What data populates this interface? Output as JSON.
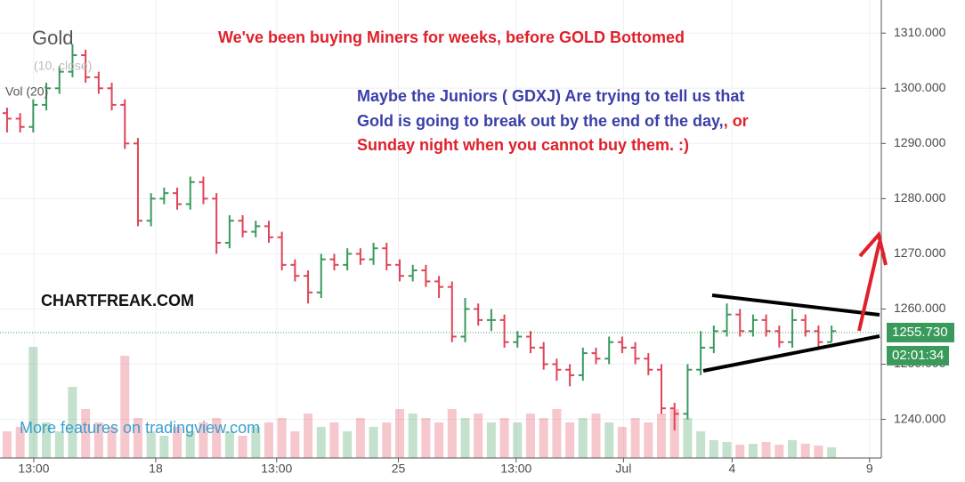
{
  "chart_data": {
    "type": "ohlc",
    "title": "Gold",
    "study_label": "(10, close)",
    "volume_label": "Vol (20)",
    "up_color": "#3a9a5c",
    "down_color": "#e04457",
    "grid": true,
    "ylim": [
      1233,
      1316
    ],
    "yticks": [
      {
        "value": 1240,
        "label": "1240.000"
      },
      {
        "value": 1250,
        "label": "1250.000"
      },
      {
        "value": 1260,
        "label": "1260.000"
      },
      {
        "value": 1270,
        "label": "1270.000"
      },
      {
        "value": 1280,
        "label": "1280.000"
      },
      {
        "value": 1290,
        "label": "1290.000"
      },
      {
        "value": 1300,
        "label": "1300.000"
      },
      {
        "value": 1310,
        "label": "1310.000"
      }
    ],
    "xlim": [
      -0.54,
      66.8
    ],
    "xticks": [
      {
        "value": 2.04,
        "label": "13:00"
      },
      {
        "value": 11.36,
        "label": "18"
      },
      {
        "value": 20.6,
        "label": "13:00"
      },
      {
        "value": 29.9,
        "label": "25"
      },
      {
        "value": 38.9,
        "label": "13:00"
      },
      {
        "value": 47.1,
        "label": "Jul"
      },
      {
        "value": 55.4,
        "label": "4"
      },
      {
        "value": 65.9,
        "label": "9"
      }
    ],
    "last_price": {
      "value": 1255.73,
      "label": "1255.730"
    },
    "countdown": "02:01:34",
    "ohlc": {
      "open": [
        1295.5,
        1294.5,
        1293,
        1297,
        1300,
        1303,
        1306,
        1302,
        1300,
        1297,
        1290,
        1276,
        1280,
        1281,
        1279,
        1283,
        1280,
        1272,
        1276,
        1274,
        1275,
        1273,
        1268,
        1266,
        1263,
        1269,
        1268,
        1270,
        1269,
        1271,
        1268,
        1266,
        1267,
        1265,
        1264,
        1255,
        1260,
        1258,
        1258,
        1254,
        1255,
        1253,
        1250,
        1249,
        1248,
        1252,
        1251,
        1254,
        1253,
        1251,
        1249,
        1242,
        1241,
        1249,
        1253,
        1256,
        1259,
        1256,
        1258,
        1256,
        1254,
        1258,
        1256,
        1254
      ],
      "high": [
        1296.5,
        1295.5,
        1298,
        1301,
        1304,
        1308,
        1307,
        1303,
        1301,
        1298,
        1291,
        1281,
        1282,
        1282,
        1284,
        1284,
        1281,
        1277,
        1277,
        1276,
        1276,
        1274,
        1269,
        1267,
        1270,
        1270,
        1271,
        1271,
        1272,
        1272,
        1269,
        1268,
        1268,
        1266,
        1265,
        1262,
        1261,
        1260,
        1259,
        1256,
        1256,
        1254,
        1251,
        1250,
        1253,
        1253,
        1255,
        1255,
        1254,
        1252,
        1250,
        1243,
        1250,
        1256,
        1257,
        1261,
        1260,
        1259,
        1259,
        1257,
        1260,
        1259,
        1257,
        1257
      ],
      "low": [
        1292,
        1292,
        1292,
        1296,
        1299,
        1302,
        1301,
        1299,
        1296,
        1289,
        1275,
        1275,
        1279,
        1278,
        1278,
        1279,
        1270,
        1271,
        1273,
        1273,
        1272,
        1267,
        1265,
        1261,
        1262,
        1267,
        1267,
        1268,
        1268,
        1267,
        1265,
        1265,
        1264,
        1262,
        1254,
        1254,
        1257,
        1256,
        1253,
        1253,
        1252,
        1249,
        1247,
        1246,
        1247,
        1250,
        1250,
        1252,
        1250,
        1248,
        1241,
        1238,
        1240,
        1248,
        1252,
        1255,
        1255,
        1255,
        1255,
        1253,
        1253,
        1255,
        1253,
        1254
      ],
      "close": [
        1294.5,
        1293,
        1297,
        1300,
        1303,
        1306,
        1302,
        1300,
        1297,
        1290,
        1276,
        1280,
        1281,
        1279,
        1283,
        1280,
        1272,
        1276,
        1274,
        1275,
        1273,
        1268,
        1266,
        1263,
        1269,
        1268,
        1270,
        1269,
        1271,
        1268,
        1266,
        1267,
        1265,
        1264,
        1255,
        1260,
        1258,
        1258,
        1254,
        1255,
        1253,
        1250,
        1249,
        1248,
        1252,
        1251,
        1254,
        1253,
        1251,
        1249,
        1242,
        1241,
        1249,
        1253,
        1256,
        1259,
        1256,
        1258,
        1256,
        1254,
        1258,
        1256,
        1254,
        1256
      ]
    },
    "volume": [
      30,
      35,
      125,
      40,
      30,
      80,
      55,
      40,
      35,
      115,
      45,
      30,
      25,
      35,
      30,
      40,
      45,
      30,
      25,
      35,
      40,
      45,
      30,
      50,
      35,
      40,
      30,
      45,
      35,
      40,
      55,
      50,
      45,
      40,
      55,
      45,
      50,
      40,
      45,
      40,
      50,
      45,
      55,
      40,
      45,
      50,
      40,
      35,
      45,
      40,
      50,
      55,
      45,
      30,
      20,
      18,
      15,
      16,
      18,
      15,
      20,
      16,
      14,
      12
    ],
    "annotations": {
      "headline": "We've been buying Miners for weeks, before GOLD Bottomed",
      "blue_line1": "Maybe the Juniors ( GDXJ) Are trying to tell us that",
      "blue_line2": "Gold is going to break out by the end of the day,",
      "red_or": ", or",
      "red_line3": "Sunday night when you cannot buy them.  :)",
      "brand": "CHARTFREAK.COM",
      "promo": "More features on tradingview.com"
    }
  }
}
